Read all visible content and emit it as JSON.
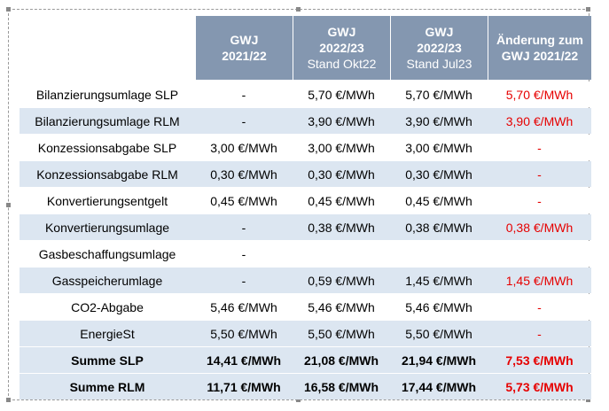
{
  "header": {
    "columns": [
      {
        "lines": [
          "GWJ",
          "2021/22"
        ]
      },
      {
        "lines": [
          "GWJ",
          "2022/23"
        ],
        "note": "Stand Okt22"
      },
      {
        "lines": [
          "GWJ",
          "2022/23"
        ],
        "note": "Stand Jul23"
      },
      {
        "lines": [
          "Änderung zum",
          "GWJ 2021/22"
        ]
      }
    ]
  },
  "table": {
    "rows": [
      {
        "cells": [
          "Bilanzierungsumlage SLP",
          "-",
          "5,70 €/MWh",
          "5,70 €/MWh",
          "5,70 €/MWh"
        ]
      },
      {
        "cells": [
          "Bilanzierungsumlage RLM",
          "-",
          "3,90 €/MWh",
          "3,90 €/MWh",
          "3,90 €/MWh"
        ]
      },
      {
        "cells": [
          "Konzessionsabgabe SLP",
          "3,00 €/MWh",
          "3,00 €/MWh",
          "3,00 €/MWh",
          "-"
        ]
      },
      {
        "cells": [
          "Konzessionsabgabe RLM",
          "0,30 €/MWh",
          "0,30 €/MWh",
          "0,30 €/MWh",
          "-"
        ]
      },
      {
        "cells": [
          "Konvertierungsentgelt",
          "0,45 €/MWh",
          "0,45 €/MWh",
          "0,45 €/MWh",
          "-"
        ]
      },
      {
        "cells": [
          "Konvertierungsumlage",
          "-",
          "0,38 €/MWh",
          "0,38 €/MWh",
          "0,38 €/MWh"
        ]
      },
      {
        "cells": [
          "Gasbeschaffungsumlage",
          "-",
          null,
          null,
          null
        ]
      },
      {
        "cells": [
          "Gasspeicherumlage",
          "-",
          "0,59 €/MWh",
          "1,45 €/MWh",
          "1,45 €/MWh"
        ]
      },
      {
        "cells": [
          "CO2-Abgabe",
          "5,46 €/MWh",
          "5,46 €/MWh",
          "5,46 €/MWh",
          "-"
        ]
      },
      {
        "cells": [
          "EnergieSt",
          "5,50 €/MWh",
          "5,50 €/MWh",
          "5,50 €/MWh",
          "-"
        ]
      },
      {
        "cells": [
          "Summe SLP",
          "14,41 €/MWh",
          "21,08 €/MWh",
          "21,94 €/MWh",
          "7,53 €/MWh"
        ],
        "bold": true
      },
      {
        "cells": [
          "Summe RLM",
          "11,71 €/MWh",
          "16,58 €/MWh",
          "17,44 €/MWh",
          "5,73 €/MWh"
        ],
        "bold": true
      }
    ]
  }
}
